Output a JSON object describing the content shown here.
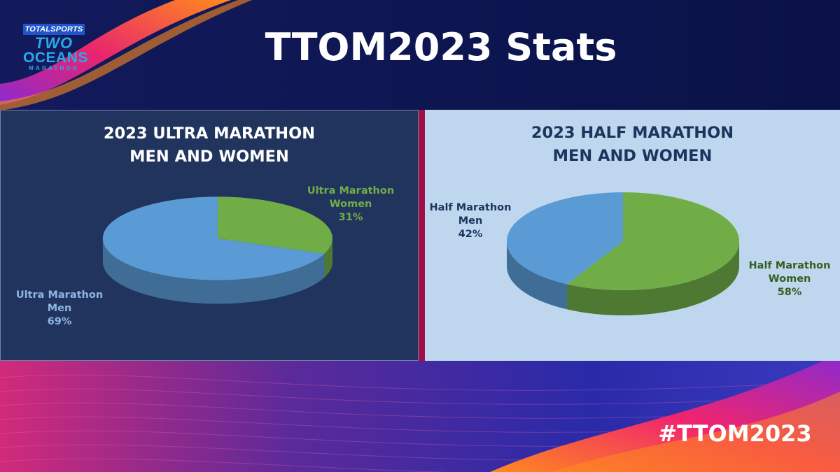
{
  "logo": {
    "sponsor": "TOTALSPORTS",
    "line1": "TWO",
    "line2": "OCEANS",
    "line3": "MARATHON"
  },
  "title": "TTOM2023 Stats",
  "hashtag": "#TTOM2023",
  "colors": {
    "men": "#5b9bd5",
    "women": "#70ad47",
    "ultra_panel_bg": "#20345e",
    "half_panel_bg": "#bed7ee",
    "divider": "#a01048"
  },
  "chart_data": [
    {
      "type": "pie",
      "title_lines": [
        "2023 ULTRA MARATHON",
        "MEN AND WOMEN"
      ],
      "categories": [
        "Ultra Marathon Women",
        "Ultra Marathon Men"
      ],
      "values": [
        31,
        69
      ],
      "labels": [
        {
          "lines": [
            "Ultra Marathon",
            "Women"
          ],
          "percent": "31%",
          "color": "#70ad47"
        },
        {
          "lines": [
            "Ultra Marathon",
            "Men"
          ],
          "percent": "69%",
          "color": "#8fb4e2"
        }
      ],
      "colors": [
        "#70ad47",
        "#5b9bd5"
      ]
    },
    {
      "type": "pie",
      "title_lines": [
        "2023 HALF MARATHON",
        "MEN AND WOMEN"
      ],
      "categories": [
        "Half Marathon Women",
        "Half Marathon Men"
      ],
      "values": [
        58,
        42
      ],
      "labels": [
        {
          "lines": [
            "Half Marathon",
            "Women"
          ],
          "percent": "58%",
          "color": "#375e23"
        },
        {
          "lines": [
            "Half Marathon",
            "Men"
          ],
          "percent": "42%",
          "color": "#1c355e"
        }
      ],
      "colors": [
        "#70ad47",
        "#5b9bd5"
      ]
    }
  ]
}
